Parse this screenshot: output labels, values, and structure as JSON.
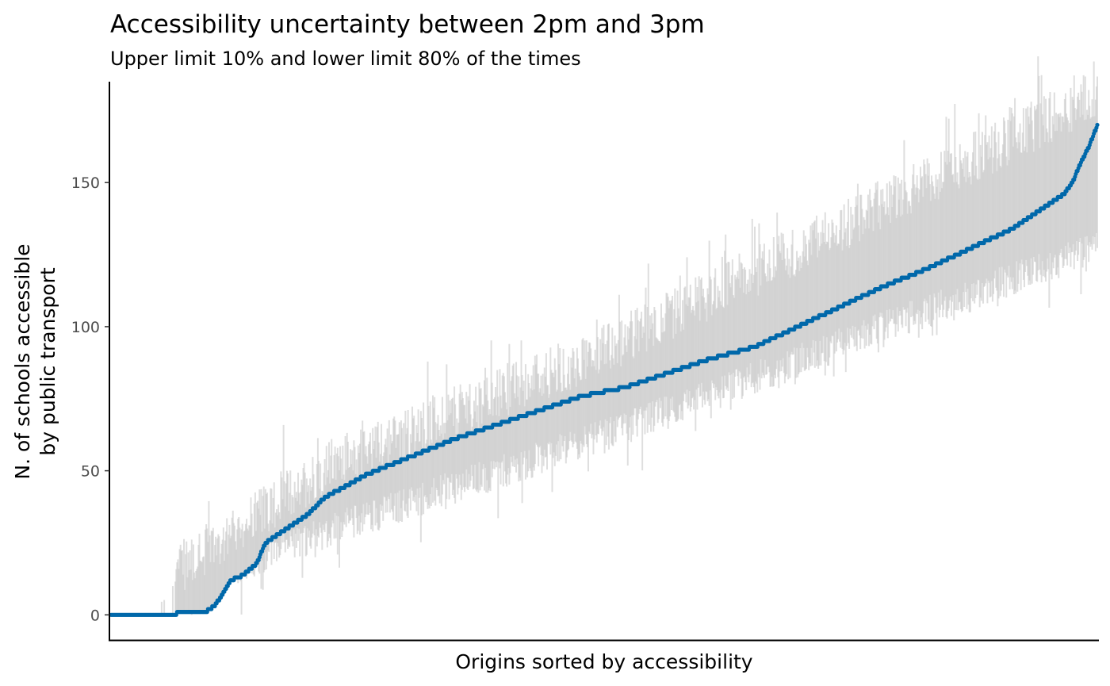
{
  "chart_data": {
    "type": "scatter",
    "title": "Accessibility uncertainty between 2pm and 3pm",
    "subtitle": "Upper limit 10% and lower limit 80% of the times",
    "xlabel": "Origins sorted by accessibility",
    "ylabel_lines": [
      "N. of schools accessible",
      "by public transport"
    ],
    "ylim": [
      -9,
      185
    ],
    "yticks": [
      0,
      50,
      100,
      150
    ],
    "xticks": [],
    "grid": false,
    "legend": "none",
    "n_origins": 1150,
    "median_profile": [
      [
        0,
        0
      ],
      [
        75,
        0
      ],
      [
        78,
        1
      ],
      [
        110,
        1
      ],
      [
        120,
        3
      ],
      [
        128,
        6
      ],
      [
        140,
        12
      ],
      [
        155,
        14
      ],
      [
        170,
        18
      ],
      [
        180,
        25
      ],
      [
        200,
        29
      ],
      [
        230,
        35
      ],
      [
        250,
        41
      ],
      [
        270,
        44
      ],
      [
        300,
        49
      ],
      [
        350,
        55
      ],
      [
        400,
        61
      ],
      [
        450,
        66
      ],
      [
        500,
        71
      ],
      [
        550,
        76
      ],
      [
        600,
        79
      ],
      [
        650,
        84
      ],
      [
        700,
        89
      ],
      [
        750,
        93
      ],
      [
        800,
        100
      ],
      [
        850,
        107
      ],
      [
        900,
        114
      ],
      [
        950,
        120
      ],
      [
        1000,
        127
      ],
      [
        1050,
        134
      ],
      [
        1080,
        140
      ],
      [
        1110,
        146
      ],
      [
        1120,
        150
      ],
      [
        1130,
        157
      ],
      [
        1140,
        163
      ],
      [
        1149,
        170
      ]
    ],
    "range_lower_mean_offset": -15,
    "range_upper_mean_offset": 15,
    "range_lower_profile": [
      [
        0,
        0
      ],
      [
        260,
        30
      ],
      [
        575,
        62
      ],
      [
        1149,
        128
      ]
    ],
    "range_upper_profile": [
      [
        0,
        0
      ],
      [
        260,
        53
      ],
      [
        575,
        92
      ],
      [
        1149,
        181
      ]
    ],
    "range_color": "#c8c8c8",
    "point_color": "#0068aa",
    "axis_color": "#000000"
  }
}
